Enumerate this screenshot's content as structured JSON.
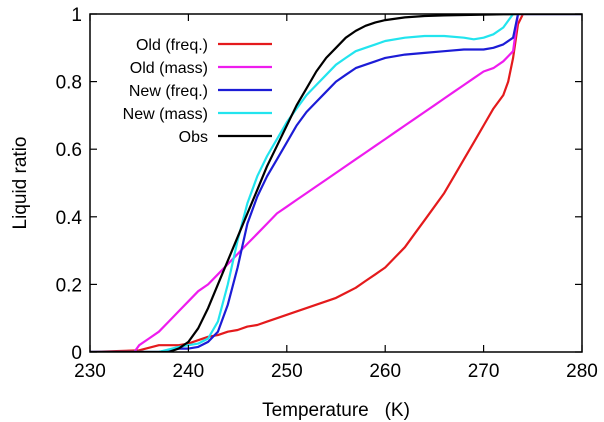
{
  "chart_data": {
    "type": "line",
    "xlabel": "Temperature   (K)",
    "ylabel": "Liquid ratio",
    "xlim": [
      230,
      280
    ],
    "ylim": [
      0,
      1
    ],
    "xticks": [
      "230",
      "240",
      "250",
      "260",
      "270",
      "280"
    ],
    "yticks": [
      "0",
      "0.2",
      "0.4",
      "0.6",
      "0.8",
      "1"
    ],
    "grid": false,
    "legend_position": "top-left",
    "series": [
      {
        "name": "Old (freq.)",
        "color": "#e41a1c",
        "x": [
          230,
          235,
          237,
          239,
          240,
          241,
          242,
          243,
          244,
          245,
          246,
          247,
          248,
          249,
          250,
          251,
          252,
          253,
          254,
          255,
          256,
          257,
          258,
          259,
          260,
          261,
          262,
          263,
          264,
          265,
          266,
          267,
          268,
          269,
          270,
          271,
          272,
          272.5,
          273,
          273.5,
          274,
          276,
          280
        ],
        "y": [
          0,
          0.005,
          0.02,
          0.02,
          0.025,
          0.035,
          0.045,
          0.05,
          0.06,
          0.065,
          0.075,
          0.08,
          0.09,
          0.1,
          0.11,
          0.12,
          0.13,
          0.14,
          0.15,
          0.16,
          0.175,
          0.19,
          0.21,
          0.23,
          0.25,
          0.28,
          0.31,
          0.35,
          0.39,
          0.43,
          0.47,
          0.52,
          0.57,
          0.62,
          0.67,
          0.72,
          0.76,
          0.8,
          0.87,
          0.97,
          1.0,
          1.0,
          1.0
        ]
      },
      {
        "name": "Old (mass)",
        "color": "#ee1cee",
        "x": [
          230,
          234.5,
          235,
          236,
          237,
          238,
          239,
          240,
          241,
          242,
          243,
          244,
          245,
          246,
          247,
          248,
          249,
          250,
          251,
          252,
          253,
          254,
          255,
          256,
          257,
          258,
          259,
          260,
          261,
          262,
          263,
          264,
          265,
          266,
          267,
          268,
          269,
          270,
          271,
          272,
          273,
          273.5,
          274,
          276,
          280
        ],
        "y": [
          0,
          0,
          0.02,
          0.04,
          0.06,
          0.09,
          0.12,
          0.15,
          0.18,
          0.2,
          0.23,
          0.26,
          0.29,
          0.32,
          0.35,
          0.38,
          0.41,
          0.43,
          0.45,
          0.47,
          0.49,
          0.51,
          0.53,
          0.55,
          0.57,
          0.59,
          0.61,
          0.63,
          0.65,
          0.67,
          0.69,
          0.71,
          0.73,
          0.75,
          0.77,
          0.79,
          0.81,
          0.83,
          0.84,
          0.86,
          0.89,
          1.0,
          1.0,
          1.0,
          1.0
        ]
      },
      {
        "name": "New (freq.)",
        "color": "#1c1cd6",
        "x": [
          230,
          237,
          239,
          240,
          241,
          242,
          243,
          244,
          245,
          246,
          247,
          248,
          249,
          250,
          251,
          252,
          253,
          254,
          255,
          256,
          257,
          258,
          259,
          260,
          262,
          264,
          266,
          268,
          270,
          271,
          272,
          273,
          273.5,
          274,
          276,
          280
        ],
        "y": [
          0,
          0,
          0.01,
          0.01,
          0.015,
          0.03,
          0.06,
          0.14,
          0.25,
          0.38,
          0.46,
          0.52,
          0.57,
          0.62,
          0.67,
          0.71,
          0.74,
          0.77,
          0.8,
          0.82,
          0.84,
          0.85,
          0.86,
          0.87,
          0.88,
          0.885,
          0.89,
          0.895,
          0.895,
          0.9,
          0.91,
          0.93,
          1.0,
          1.0,
          1.0,
          1.0
        ]
      },
      {
        "name": "New (mass)",
        "color": "#22e4ee",
        "x": [
          230,
          237,
          239,
          240,
          241,
          242,
          243,
          244,
          245,
          246,
          247,
          248,
          249,
          250,
          251,
          252,
          253,
          254,
          255,
          256,
          257,
          258,
          259,
          260,
          262,
          264,
          266,
          268,
          269,
          270,
          271,
          272,
          273,
          274,
          276,
          280
        ],
        "y": [
          0,
          0,
          0.015,
          0.02,
          0.025,
          0.04,
          0.09,
          0.2,
          0.33,
          0.44,
          0.52,
          0.58,
          0.63,
          0.68,
          0.72,
          0.76,
          0.79,
          0.82,
          0.85,
          0.87,
          0.89,
          0.9,
          0.91,
          0.92,
          0.93,
          0.935,
          0.935,
          0.93,
          0.925,
          0.93,
          0.94,
          0.96,
          1.0,
          1.0,
          1.0,
          1.0
        ]
      },
      {
        "name": "Obs",
        "color": "#000000",
        "x": [
          230,
          238,
          239,
          240,
          241,
          242,
          243,
          244,
          245,
          246,
          247,
          248,
          249,
          250,
          251,
          252,
          253,
          254,
          255,
          256,
          257,
          258,
          259,
          260,
          262,
          264,
          266,
          268,
          270,
          272,
          274,
          276,
          280
        ],
        "y": [
          0,
          0,
          0.01,
          0.03,
          0.07,
          0.13,
          0.2,
          0.27,
          0.34,
          0.41,
          0.48,
          0.55,
          0.61,
          0.67,
          0.73,
          0.78,
          0.83,
          0.87,
          0.9,
          0.93,
          0.95,
          0.965,
          0.975,
          0.982,
          0.99,
          0.994,
          0.996,
          0.997,
          0.998,
          0.999,
          1.0,
          1.0,
          1.0
        ]
      }
    ]
  }
}
